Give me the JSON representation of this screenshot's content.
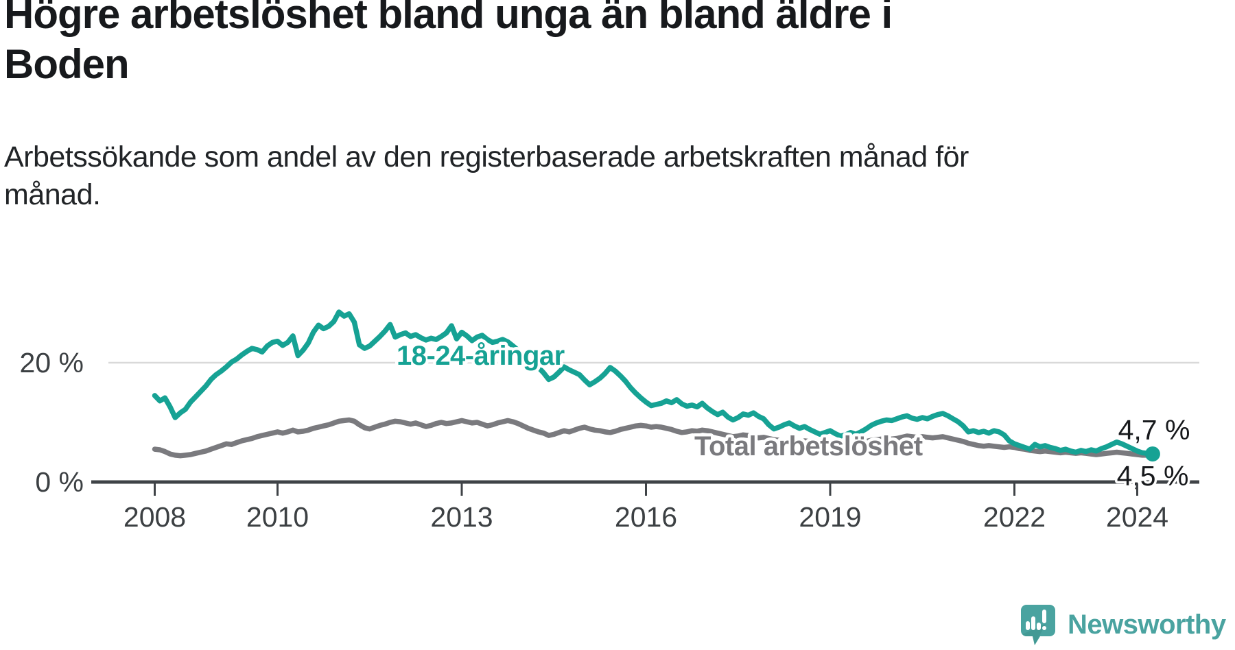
{
  "title": {
    "line1": "Högre arbetslöshet bland unga än bland äldre i",
    "line2": "Boden",
    "full": "Högre arbetslöshet bland unga än bland äldre i Boden"
  },
  "subtitle": {
    "line1": "Arbetssökande som andel av den registerbaserade arbetskraften månad för",
    "line2": "månad.",
    "full": "Arbetssökande som andel av den registerbaserade arbetskraften månad för månad."
  },
  "chart_data": {
    "type": "line",
    "unit": "%",
    "frequency": "monthly",
    "x_start": "2008-01",
    "x_end": "2024-04",
    "x_ticks": [
      2008,
      2010,
      2013,
      2016,
      2019,
      2022,
      2024
    ],
    "x_tick_labels": [
      "2008",
      "2010",
      "2013",
      "2016",
      "2019",
      "2022",
      "2024"
    ],
    "y_tick_labels": {
      "zero": "0 %",
      "twenty": "20 %"
    },
    "y_tick_values": [
      0,
      20
    ],
    "ylim": [
      0,
      30
    ],
    "grid": "horizontal-20-only",
    "colors": {
      "youth": "#16a294",
      "total": "#7a7a7e",
      "axis": "#3f4347",
      "grid": "#d9d9d9"
    },
    "series": [
      {
        "name": "18-24-åringar",
        "color": "#16a294",
        "end_label": "4,7 %",
        "end_value": 4.7,
        "values": [
          14.5,
          13.6,
          14.1,
          12.6,
          10.8,
          11.6,
          12.2,
          13.4,
          14.3,
          15.2,
          16.1,
          17.2,
          18.0,
          18.6,
          19.3,
          20.1,
          20.6,
          21.3,
          21.9,
          22.4,
          22.2,
          21.8,
          22.8,
          23.4,
          23.6,
          22.9,
          23.4,
          24.5,
          21.2,
          22.1,
          23.3,
          25.1,
          26.3,
          25.7,
          26.1,
          26.9,
          28.5,
          27.8,
          28.2,
          26.8,
          23.0,
          22.4,
          22.8,
          23.6,
          24.4,
          25.3,
          26.4,
          24.3,
          24.7,
          25.0,
          24.4,
          24.7,
          24.2,
          23.8,
          24.1,
          23.9,
          24.4,
          25.0,
          26.2,
          24.0,
          25.1,
          24.5,
          23.7,
          24.3,
          24.6,
          23.9,
          23.4,
          23.6,
          23.9,
          23.5,
          22.8,
          22.1,
          21.4,
          20.6,
          19.8,
          19.2,
          18.3,
          17.2,
          17.6,
          18.4,
          19.3,
          18.8,
          18.4,
          18.0,
          17.1,
          16.3,
          16.8,
          17.4,
          18.2,
          19.2,
          18.6,
          17.8,
          16.9,
          15.8,
          14.9,
          14.1,
          13.4,
          12.8,
          13.0,
          13.2,
          13.6,
          13.3,
          13.8,
          13.1,
          12.7,
          12.9,
          12.6,
          13.2,
          12.4,
          11.8,
          11.3,
          11.7,
          10.9,
          10.4,
          10.8,
          11.4,
          11.2,
          11.6,
          11.0,
          10.6,
          9.6,
          8.9,
          9.2,
          9.6,
          9.9,
          9.4,
          9.0,
          9.3,
          8.8,
          8.4,
          8.0,
          8.3,
          8.6,
          8.1,
          7.7,
          7.9,
          8.3,
          8.0,
          8.4,
          8.9,
          9.5,
          9.9,
          10.2,
          10.4,
          10.3,
          10.6,
          10.9,
          11.1,
          10.7,
          10.5,
          10.8,
          10.6,
          11.0,
          11.3,
          11.5,
          11.1,
          10.6,
          10.1,
          9.4,
          8.4,
          8.6,
          8.3,
          8.5,
          8.2,
          8.6,
          8.4,
          7.9,
          6.9,
          6.4,
          6.1,
          5.8,
          5.5,
          6.3,
          5.9,
          6.1,
          5.8,
          5.6,
          5.3,
          5.5,
          5.2,
          5.0,
          5.3,
          5.1,
          5.4,
          5.2,
          5.6,
          5.9,
          6.3,
          6.7,
          6.4,
          6.0,
          5.6,
          5.2,
          4.9,
          4.8,
          4.7
        ]
      },
      {
        "name": "Total arbetslöshet",
        "color": "#7a7a7e",
        "end_label": "4,5 %",
        "end_value": 4.5,
        "values": [
          5.5,
          5.4,
          5.1,
          4.7,
          4.5,
          4.4,
          4.5,
          4.6,
          4.8,
          5.0,
          5.2,
          5.5,
          5.8,
          6.1,
          6.4,
          6.3,
          6.6,
          6.9,
          7.1,
          7.3,
          7.6,
          7.8,
          8.0,
          8.2,
          8.4,
          8.2,
          8.4,
          8.7,
          8.4,
          8.5,
          8.7,
          9.0,
          9.2,
          9.4,
          9.6,
          9.9,
          10.2,
          10.3,
          10.4,
          10.2,
          9.6,
          9.1,
          8.9,
          9.2,
          9.5,
          9.7,
          10.0,
          10.2,
          10.1,
          9.9,
          9.7,
          9.9,
          9.6,
          9.3,
          9.5,
          9.8,
          10.0,
          9.8,
          9.9,
          10.1,
          10.3,
          10.1,
          9.9,
          10.0,
          9.7,
          9.4,
          9.6,
          9.9,
          10.1,
          10.3,
          10.1,
          9.8,
          9.4,
          9.0,
          8.7,
          8.4,
          8.2,
          7.8,
          8.0,
          8.3,
          8.6,
          8.4,
          8.7,
          9.0,
          9.2,
          8.9,
          8.7,
          8.6,
          8.4,
          8.3,
          8.5,
          8.8,
          9.0,
          9.2,
          9.4,
          9.5,
          9.4,
          9.2,
          9.3,
          9.2,
          9.0,
          8.8,
          8.5,
          8.3,
          8.4,
          8.6,
          8.5,
          8.7,
          8.6,
          8.4,
          8.2,
          8.0,
          7.8,
          7.6,
          7.7,
          7.9,
          7.8,
          7.6,
          7.4,
          7.5,
          7.3,
          7.1,
          7.0,
          6.9,
          6.7,
          6.6,
          6.7,
          6.9,
          6.8,
          6.6,
          6.5,
          6.7,
          6.8,
          6.6,
          6.5,
          6.4,
          6.3,
          6.4,
          6.6,
          6.8,
          7.0,
          7.1,
          7.2,
          7.3,
          7.2,
          7.3,
          7.5,
          7.7,
          7.6,
          7.5,
          7.6,
          7.5,
          7.4,
          7.5,
          7.6,
          7.4,
          7.2,
          7.0,
          6.8,
          6.5,
          6.3,
          6.1,
          6.0,
          6.1,
          6.0,
          5.9,
          5.8,
          5.9,
          5.8,
          5.6,
          5.5,
          5.3,
          5.2,
          5.1,
          5.2,
          5.1,
          5.0,
          4.9,
          5.0,
          4.9,
          4.8,
          4.9,
          4.8,
          4.7,
          4.6,
          4.7,
          4.8,
          4.9,
          5.0,
          4.9,
          4.8,
          4.7,
          4.6,
          4.5,
          4.5,
          4.5
        ]
      }
    ]
  },
  "branding": {
    "name": "Newsworthy",
    "color": "#4aa3a0",
    "logo_shadow_color": "#3d918b"
  }
}
